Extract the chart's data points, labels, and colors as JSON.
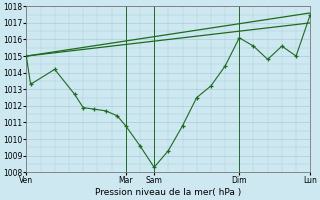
{
  "background_color": "#cde8f0",
  "grid_color": "#aaccda",
  "line_color": "#1e6b1e",
  "marker_color": "#1e6b1e",
  "xlabel": "Pression niveau de la mer( hPa )",
  "ylim": [
    1008,
    1018
  ],
  "yticks": [
    1008,
    1009,
    1010,
    1011,
    1012,
    1013,
    1014,
    1015,
    1016,
    1017,
    1018
  ],
  "xtick_labels": [
    "Ven",
    "Mar",
    "Sam",
    "Dim",
    "Lun"
  ],
  "xtick_positions": [
    0,
    3.5,
    4.5,
    7.5,
    10
  ],
  "vlines_x": [
    3.5,
    4.5,
    7.5,
    10
  ],
  "series1_x": [
    0,
    10
  ],
  "series1_y": [
    1015.0,
    1017.6
  ],
  "series2_x": [
    0,
    10
  ],
  "series2_y": [
    1015.0,
    1017.0
  ],
  "series3_x": [
    0,
    0.15,
    1.0,
    1.7,
    2.0,
    2.4,
    2.8,
    3.2,
    3.5,
    4.0,
    4.5,
    5.0,
    5.5,
    6.0,
    6.5,
    7.0,
    7.5,
    8.0,
    8.5,
    9.0,
    9.5,
    10.0
  ],
  "series3_y": [
    1015.0,
    1013.3,
    1014.2,
    1012.7,
    1011.9,
    1011.8,
    1011.7,
    1011.4,
    1010.8,
    1009.6,
    1008.3,
    1009.3,
    1010.8,
    1012.5,
    1013.2,
    1014.4,
    1016.1,
    1015.6,
    1014.8,
    1015.6,
    1015.0,
    1017.5
  ],
  "figsize": [
    3.2,
    2.0
  ],
  "dpi": 100
}
